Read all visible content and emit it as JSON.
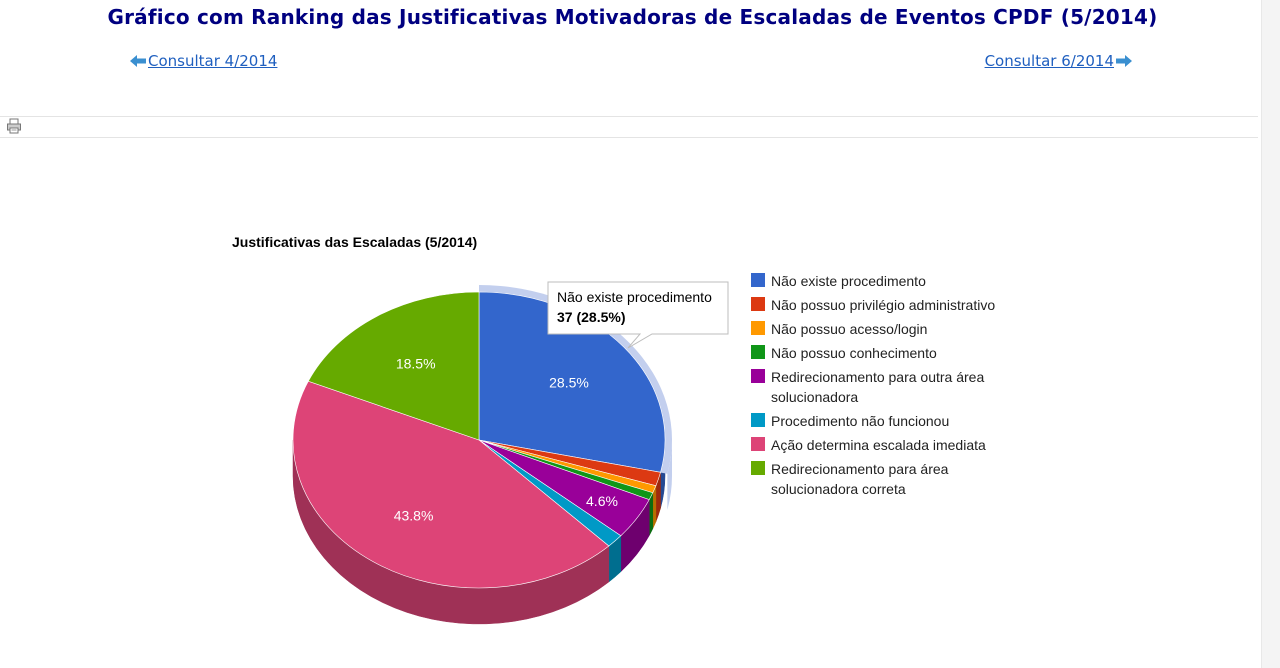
{
  "page": {
    "title": "Gráfico com Ranking das Justificativas Motivadoras de Escaladas de Eventos CPDF (5/2014)",
    "prev_label": " Consultar 4/2014",
    "next_label": "Consultar 6/2014",
    "icons": {
      "prev": "arrow-left-icon",
      "next": "arrow-right-icon",
      "print": "printer-icon"
    }
  },
  "tooltip": {
    "name": "Não existe procedimento",
    "value": "37 (28.5%)"
  },
  "chart_data": {
    "type": "pie",
    "title": "Justificativas das Escaladas (5/2014)",
    "three_d": true,
    "legend_position": "right",
    "slices": [
      {
        "name": "Não existe procedimento",
        "percent": 28.5,
        "value": 37,
        "label": "28.5%",
        "color": "#3366cc"
      },
      {
        "name": "Não possuo privilégio administrativo",
        "percent": 1.5,
        "label": "",
        "color": "#dc3912"
      },
      {
        "name": "Não possuo acesso/login",
        "percent": 0.8,
        "label": "",
        "color": "#ff9900"
      },
      {
        "name": "Não possuo conhecimento",
        "percent": 0.8,
        "label": "",
        "color": "#109618"
      },
      {
        "name": "Redirecionamento para outra área solucionadora",
        "percent": 4.6,
        "label": "4.6%",
        "color": "#990099"
      },
      {
        "name": "Procedimento não funcionou",
        "percent": 1.5,
        "label": "",
        "color": "#0099c6"
      },
      {
        "name": "Ação determina escalada imediata",
        "percent": 43.8,
        "label": "43.8%",
        "color": "#dd4477"
      },
      {
        "name": "Redirecionamento para área solucionadora correta",
        "percent": 18.5,
        "label": "18.5%",
        "color": "#66aa00"
      }
    ],
    "legend": [
      [
        "Não existe procedimento"
      ],
      [
        "Não possuo privilégio administrativo"
      ],
      [
        "Não possuo acesso/login"
      ],
      [
        "Não possuo conhecimento"
      ],
      [
        "Redirecionamento para outra área",
        "solucionadora"
      ],
      [
        "Procedimento não funcionou"
      ],
      [
        "Ação determina escalada imediata"
      ],
      [
        "Redirecionamento para área",
        "solucionadora correta"
      ]
    ]
  }
}
